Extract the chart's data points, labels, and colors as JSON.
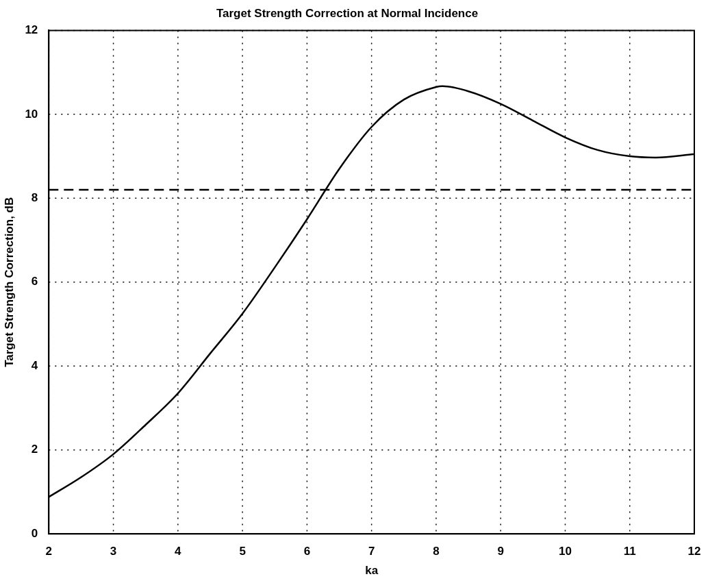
{
  "chart_data": {
    "type": "line",
    "title": "Target Strength Correction at Normal Incidence",
    "xlabel": "ka",
    "ylabel": "Target Strength Correction, dB",
    "x": [
      2,
      2.5,
      3,
      3.5,
      4,
      4.5,
      5,
      5.5,
      6,
      6.5,
      7,
      7.5,
      8,
      8.1,
      8.5,
      9,
      9.5,
      10,
      10.5,
      11,
      11.4,
      12
    ],
    "series": [
      {
        "color": "#000000",
        "values": [
          0.88,
          1.35,
          1.9,
          2.6,
          3.35,
          4.3,
          5.25,
          6.35,
          7.5,
          8.7,
          9.7,
          10.35,
          10.65,
          10.67,
          10.55,
          10.25,
          9.85,
          9.45,
          9.15,
          9.0,
          8.97,
          9.05
        ]
      }
    ],
    "ref_lines": [
      {
        "axis": "y",
        "value": 8.2,
        "color": "#000000",
        "line_style": "dashed"
      }
    ],
    "xlim": [
      2,
      12
    ],
    "xticks": [
      2,
      3,
      4,
      5,
      6,
      7,
      8,
      9,
      10,
      11,
      12
    ],
    "ylim": [
      0,
      12
    ],
    "yticks": [
      0,
      2,
      4,
      6,
      8,
      10,
      12
    ],
    "grid": true,
    "legend": false,
    "marker": "none",
    "line_style": "solid"
  }
}
